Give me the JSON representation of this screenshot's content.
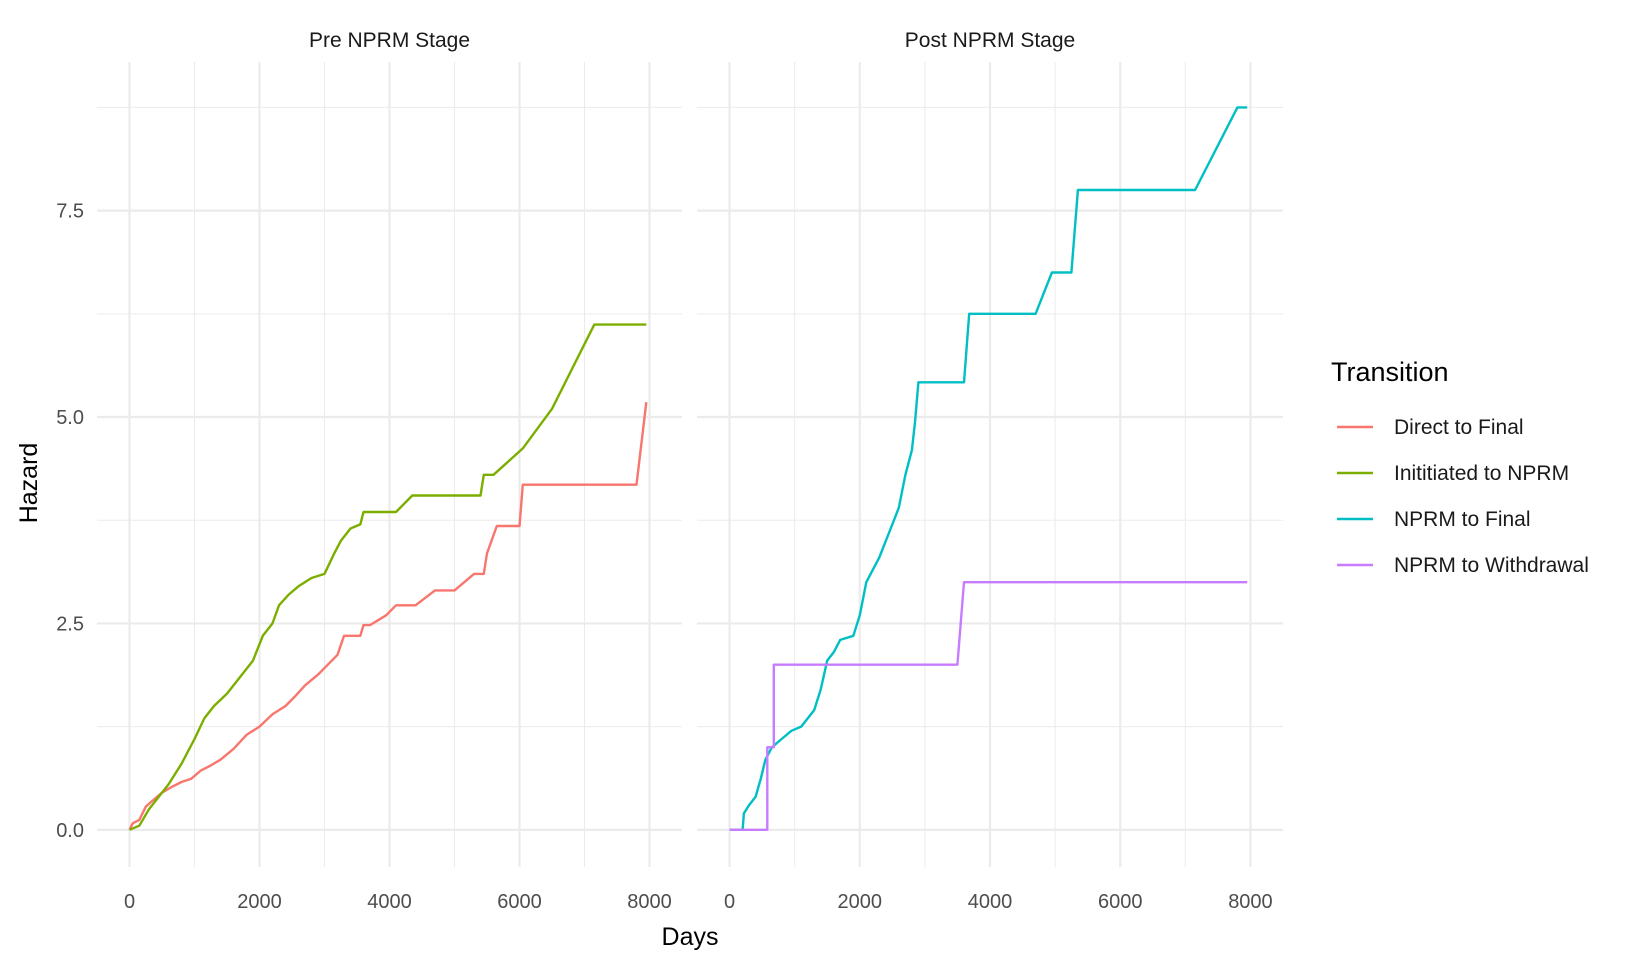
{
  "chart_data": {
    "type": "line",
    "xlabel": "Days",
    "ylabel": "Hazard",
    "xlim": [
      0,
      8000
    ],
    "ylim": [
      0,
      8.75
    ],
    "x_ticks": [
      0,
      2000,
      4000,
      6000,
      8000
    ],
    "x_tick_labels": [
      "0",
      "2000",
      "4000",
      "6000",
      "8000"
    ],
    "y_ticks": [
      0,
      2.5,
      5,
      7.5
    ],
    "y_tick_labels": [
      "0.0",
      "2.5",
      "5.0",
      "7.5"
    ],
    "grid": true,
    "legend": {
      "title": "Transition",
      "placement": "right",
      "entries": [
        {
          "name": "Direct to Final",
          "color": "#F8766D"
        },
        {
          "name": "Inititiated to NPRM",
          "color": "#7CAE00"
        },
        {
          "name": "NPRM to Final",
          "color": "#00BFC4"
        },
        {
          "name": "NPRM to Withdrawal",
          "color": "#C77CFF"
        }
      ]
    },
    "panels": [
      {
        "title": "Pre NPRM Stage",
        "series": [
          {
            "name": "Direct to Final",
            "color": "#F8766D",
            "points": [
              [
                0,
                0
              ],
              [
                50,
                0.08
              ],
              [
                150,
                0.12
              ],
              [
                250,
                0.28
              ],
              [
                350,
                0.35
              ],
              [
                500,
                0.45
              ],
              [
                650,
                0.52
              ],
              [
                800,
                0.58
              ],
              [
                950,
                0.62
              ],
              [
                1100,
                0.72
              ],
              [
                1250,
                0.78
              ],
              [
                1400,
                0.85
              ],
              [
                1600,
                0.98
              ],
              [
                1800,
                1.15
              ],
              [
                2000,
                1.25
              ],
              [
                2200,
                1.4
              ],
              [
                2400,
                1.5
              ],
              [
                2550,
                1.62
              ],
              [
                2700,
                1.75
              ],
              [
                2900,
                1.88
              ],
              [
                3050,
                2.0
              ],
              [
                3200,
                2.12
              ],
              [
                3300,
                2.35
              ],
              [
                3550,
                2.35
              ],
              [
                3600,
                2.48
              ],
              [
                3700,
                2.48
              ],
              [
                3950,
                2.6
              ],
              [
                4100,
                2.72
              ],
              [
                4400,
                2.72
              ],
              [
                4700,
                2.9
              ],
              [
                5000,
                2.9
              ],
              [
                5300,
                3.1
              ],
              [
                5450,
                3.1
              ],
              [
                5500,
                3.35
              ],
              [
                5650,
                3.68
              ],
              [
                6000,
                3.68
              ],
              [
                6050,
                4.18
              ],
              [
                7800,
                4.18
              ],
              [
                7950,
                5.18
              ]
            ]
          },
          {
            "name": "Inititiated to NPRM",
            "color": "#7CAE00",
            "points": [
              [
                0,
                0
              ],
              [
                150,
                0.05
              ],
              [
                300,
                0.25
              ],
              [
                450,
                0.4
              ],
              [
                600,
                0.55
              ],
              [
                800,
                0.8
              ],
              [
                1000,
                1.1
              ],
              [
                1150,
                1.35
              ],
              [
                1300,
                1.5
              ],
              [
                1500,
                1.65
              ],
              [
                1700,
                1.85
              ],
              [
                1900,
                2.05
              ],
              [
                2050,
                2.35
              ],
              [
                2200,
                2.5
              ],
              [
                2300,
                2.72
              ],
              [
                2450,
                2.85
              ],
              [
                2600,
                2.95
              ],
              [
                2800,
                3.05
              ],
              [
                3000,
                3.1
              ],
              [
                3150,
                3.35
              ],
              [
                3250,
                3.5
              ],
              [
                3400,
                3.65
              ],
              [
                3550,
                3.7
              ],
              [
                3600,
                3.85
              ],
              [
                4100,
                3.85
              ],
              [
                4350,
                4.05
              ],
              [
                5400,
                4.05
              ],
              [
                5450,
                4.3
              ],
              [
                5600,
                4.3
              ],
              [
                6050,
                4.62
              ],
              [
                6500,
                5.1
              ],
              [
                7150,
                6.12
              ],
              [
                7950,
                6.12
              ]
            ]
          }
        ]
      },
      {
        "title": "Post NPRM Stage",
        "series": [
          {
            "name": "NPRM to Final",
            "color": "#00BFC4",
            "points": [
              [
                0,
                0
              ],
              [
                200,
                0
              ],
              [
                220,
                0.2
              ],
              [
                300,
                0.3
              ],
              [
                400,
                0.4
              ],
              [
                480,
                0.62
              ],
              [
                550,
                0.85
              ],
              [
                650,
                1.0
              ],
              [
                800,
                1.1
              ],
              [
                950,
                1.2
              ],
              [
                1100,
                1.25
              ],
              [
                1200,
                1.35
              ],
              [
                1300,
                1.45
              ],
              [
                1400,
                1.7
              ],
              [
                1500,
                2.05
              ],
              [
                1600,
                2.15
              ],
              [
                1700,
                2.3
              ],
              [
                1900,
                2.35
              ],
              [
                2000,
                2.6
              ],
              [
                2100,
                3.0
              ],
              [
                2200,
                3.15
              ],
              [
                2300,
                3.3
              ],
              [
                2400,
                3.5
              ],
              [
                2500,
                3.7
              ],
              [
                2600,
                3.9
              ],
              [
                2700,
                4.3
              ],
              [
                2800,
                4.6
              ],
              [
                2850,
                4.95
              ],
              [
                2900,
                5.42
              ],
              [
                3600,
                5.42
              ],
              [
                3680,
                6.25
              ],
              [
                4700,
                6.25
              ],
              [
                4950,
                6.75
              ],
              [
                5250,
                6.75
              ],
              [
                5350,
                7.75
              ],
              [
                7150,
                7.75
              ],
              [
                7800,
                8.75
              ],
              [
                7950,
                8.75
              ]
            ]
          },
          {
            "name": "NPRM to Withdrawal",
            "color": "#C77CFF",
            "points": [
              [
                0,
                0
              ],
              [
                580,
                0
              ],
              [
                580,
                1.0
              ],
              [
                680,
                1.0
              ],
              [
                680,
                2.0
              ],
              [
                3500,
                2.0
              ],
              [
                3600,
                3.0
              ],
              [
                7950,
                3.0
              ]
            ]
          }
        ]
      }
    ]
  }
}
